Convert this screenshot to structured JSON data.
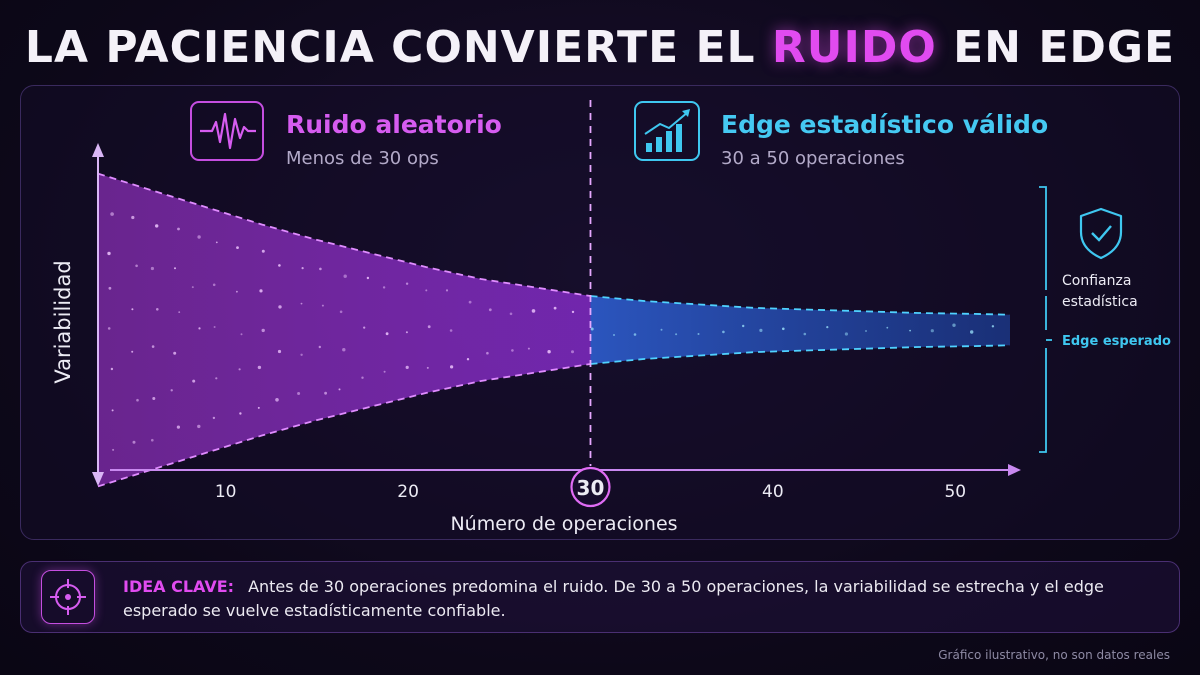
{
  "title": {
    "pre": "LA PACIENCIA CONVIERTE EL",
    "highlight": "RUIDO",
    "post": "EN EDGE"
  },
  "zones": {
    "noise": {
      "title": "Ruido aleatorio",
      "subtitle": "Menos de 30 ops",
      "icon": "waveform-icon"
    },
    "edge": {
      "title": "Edge estadístico válido",
      "subtitle": "30 a 50 operaciones",
      "icon": "rising-bars-icon"
    }
  },
  "confidence": {
    "label_line1": "Confianza",
    "label_line2": "estadística",
    "icon": "shield-check-icon"
  },
  "expected_label": "Edge esperado",
  "callout": {
    "key": "IDEA CLAVE:",
    "text": "Antes de 30 operaciones predomina el ruido. De 30 a 50 operaciones, la variabilidad se estrecha y el edge esperado se vuelve estadísticamente confiable.",
    "icon": "target-icon"
  },
  "footnote": "Gráfico ilustrativo, no son datos reales",
  "colors": {
    "noise": "#c34cf2",
    "edge": "#3fc7f0",
    "highlight": "#e14bf0"
  },
  "chart_data": {
    "type": "area",
    "title": "",
    "xlabel": "Número de operaciones",
    "ylabel": "Variabilidad",
    "x_ticks": [
      10,
      20,
      30,
      40,
      50
    ],
    "highlight_tick": 30,
    "threshold_x": 30,
    "xlim": [
      3,
      53
    ],
    "ylim": [
      -1,
      1
    ],
    "expected_edge": 0,
    "band": {
      "x": [
        3,
        6,
        9,
        12,
        15,
        18,
        21,
        24,
        27,
        30,
        33,
        36,
        39,
        42,
        45,
        48,
        51,
        53
      ],
      "upper": [
        0.92,
        0.82,
        0.72,
        0.62,
        0.53,
        0.45,
        0.37,
        0.3,
        0.25,
        0.2,
        0.17,
        0.15,
        0.13,
        0.12,
        0.11,
        0.1,
        0.095,
        0.09
      ],
      "lower": [
        -0.92,
        -0.82,
        -0.72,
        -0.62,
        -0.53,
        -0.45,
        -0.37,
        -0.3,
        -0.25,
        -0.2,
        -0.17,
        -0.15,
        -0.13,
        -0.12,
        -0.11,
        -0.1,
        -0.095,
        -0.09
      ]
    },
    "grid": false
  }
}
